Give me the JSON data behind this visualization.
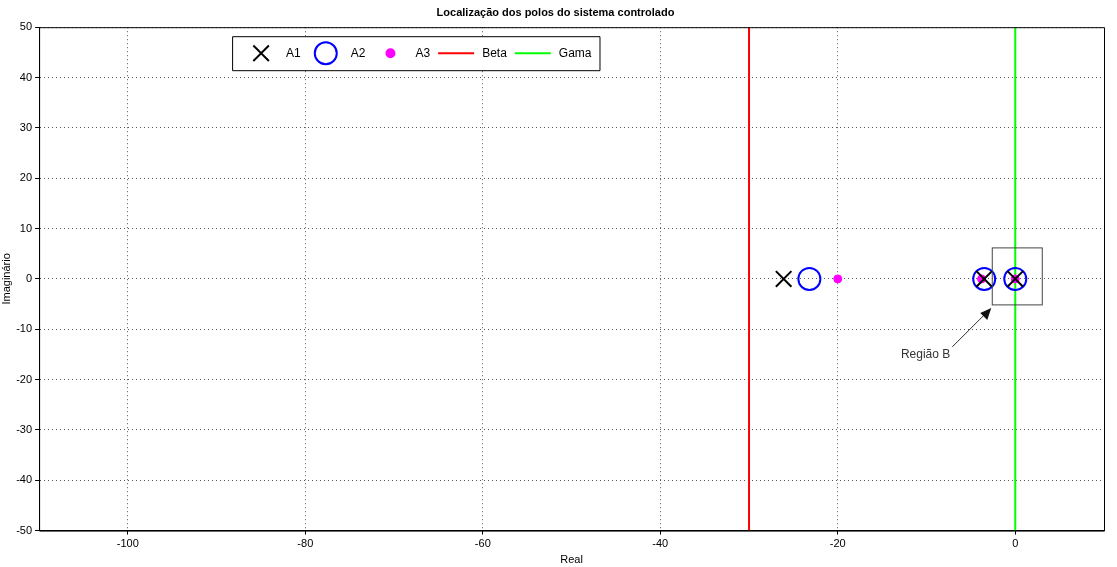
{
  "chart_data": {
    "type": "scatter",
    "title": "Localização dos polos do sistema controlado",
    "xlabel": "Real",
    "ylabel": "Imaginário",
    "xlim": [
      -110,
      10
    ],
    "xticks": [
      -100,
      -80,
      -60,
      -40,
      -20,
      0
    ],
    "ylim": [
      -50,
      50
    ],
    "yticks": [
      -50,
      -40,
      -30,
      -20,
      -10,
      0,
      10,
      20,
      30,
      40,
      50
    ],
    "grid": true,
    "legend": "top left",
    "series": [
      {
        "name": "A1",
        "color": "#000000",
        "marker": "cross",
        "x": [
          -26.1,
          -3.5,
          0
        ],
        "values": [
          0,
          0,
          0
        ]
      },
      {
        "name": "A2",
        "color": "#0000ff",
        "marker": "circle",
        "x": [
          -23.2,
          -3.5,
          0
        ],
        "values": [
          0,
          0,
          0
        ]
      },
      {
        "name": "A3",
        "color": "#ff00ff",
        "marker": "circle",
        "x": [
          -20,
          -3.8,
          0
        ],
        "values": [
          0,
          0,
          0
        ]
      },
      {
        "name": "Beta",
        "type": "line",
        "color": "#ff0000",
        "marker": "none",
        "x": [
          -30,
          -30
        ],
        "values": [
          -50,
          50
        ]
      },
      {
        "name": "Gama",
        "type": "line",
        "color": "#00ff00",
        "marker": "none",
        "x": [
          0,
          0
        ],
        "values": [
          -50,
          50
        ]
      }
    ],
    "annotations": [
      "Região B"
    ]
  }
}
